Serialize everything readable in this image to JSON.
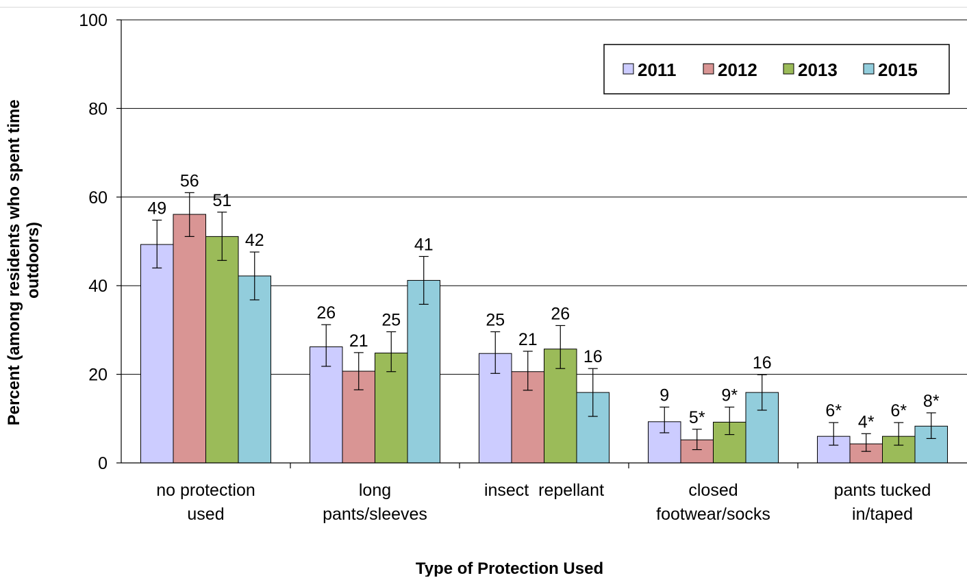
{
  "chart_data": {
    "type": "bar",
    "title": "",
    "xlabel": "Type of Protection Used",
    "ylabel": "Percent (among residents who spent time outdoors)",
    "ylim": [
      0,
      100
    ],
    "yticks": [
      0,
      20,
      40,
      60,
      80,
      100
    ],
    "grid": true,
    "legend_position": "top-right",
    "categories": [
      [
        "no protection",
        "used"
      ],
      [
        "long",
        "pants/sleeves"
      ],
      [
        "insect  repellant"
      ],
      [
        "closed",
        "footwear/socks"
      ],
      [
        "pants tucked",
        "in/taped"
      ]
    ],
    "series": [
      {
        "name": "2011",
        "color": "#ccccff",
        "values": [
          49.3,
          26.2,
          24.7,
          9.3,
          6.0
        ],
        "labels": [
          "49",
          "26",
          "25",
          "9",
          "6*"
        ],
        "err_low": [
          44.0,
          21.8,
          20.2,
          6.8,
          4.0
        ],
        "err_high": [
          54.8,
          31.2,
          29.6,
          12.6,
          9.1
        ]
      },
      {
        "name": "2012",
        "color": "#d99594",
        "values": [
          56.1,
          20.7,
          20.6,
          5.2,
          4.3
        ],
        "labels": [
          "56",
          "21",
          "21",
          "5*",
          "4*"
        ],
        "err_low": [
          51.1,
          16.5,
          16.4,
          3.0,
          2.6
        ],
        "err_high": [
          61.0,
          24.9,
          25.2,
          7.6,
          6.6
        ]
      },
      {
        "name": "2013",
        "color": "#9bbb59",
        "values": [
          51.1,
          24.8,
          25.7,
          9.2,
          6.0
        ],
        "labels": [
          "51",
          "25",
          "26",
          "9*",
          "6*"
        ],
        "err_low": [
          45.7,
          20.6,
          21.3,
          6.4,
          4.0
        ],
        "err_high": [
          56.6,
          29.6,
          31.0,
          12.6,
          9.1
        ]
      },
      {
        "name": "2015",
        "color": "#92cddc",
        "values": [
          42.2,
          41.2,
          15.9,
          15.9,
          8.3
        ],
        "labels": [
          "42",
          "41",
          "16",
          "16",
          "8*"
        ],
        "err_low": [
          36.8,
          35.8,
          10.5,
          11.9,
          5.5
        ],
        "err_high": [
          47.6,
          46.6,
          21.3,
          19.9,
          11.3
        ]
      }
    ]
  }
}
